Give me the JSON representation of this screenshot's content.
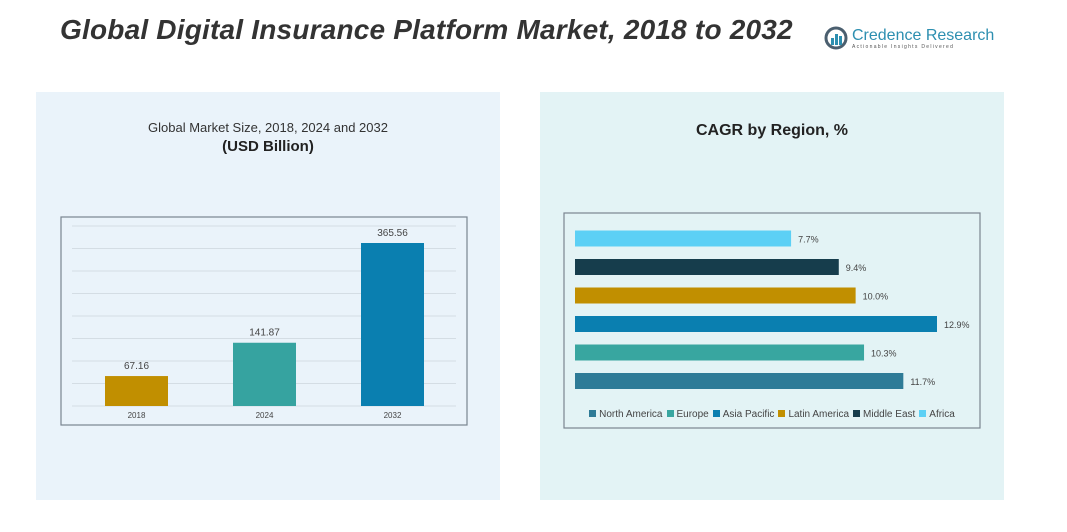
{
  "title": "Global Digital Insurance Platform Market, 2018 to 2032",
  "logo": {
    "name": "Credence Research",
    "tagline": "Actionable Insights Delivered"
  },
  "chart_data": [
    {
      "type": "bar",
      "title": "Global Market Size, 2018, 2024 and 2032",
      "subtitle": "(USD Billion)",
      "categories": [
        "2018",
        "2024",
        "2032"
      ],
      "values": [
        67.16,
        141.87,
        365.56
      ],
      "labels": [
        "67.16",
        "141.87",
        "365.56"
      ],
      "colors": [
        "#c18f00",
        "#36a3a0",
        "#0a7fb0"
      ],
      "grid": true
    },
    {
      "type": "bar",
      "orientation": "horizontal",
      "title": "CAGR by Region, %",
      "categories": [
        "North America",
        "Europe",
        "Asia Pacific",
        "Latin America",
        "Middle East",
        "Africa"
      ],
      "values": [
        11.7,
        10.3,
        12.9,
        10.0,
        9.4,
        7.7
      ],
      "labels": [
        "11.7%",
        "10.3%",
        "12.9%",
        "10.0%",
        "9.4%",
        "7.7%"
      ],
      "colors": [
        "#2e7b97",
        "#38a6a0",
        "#0a7fb0",
        "#c18f00",
        "#163d4c",
        "#5cd0f5"
      ],
      "legend": "bottom",
      "grid": false
    }
  ]
}
